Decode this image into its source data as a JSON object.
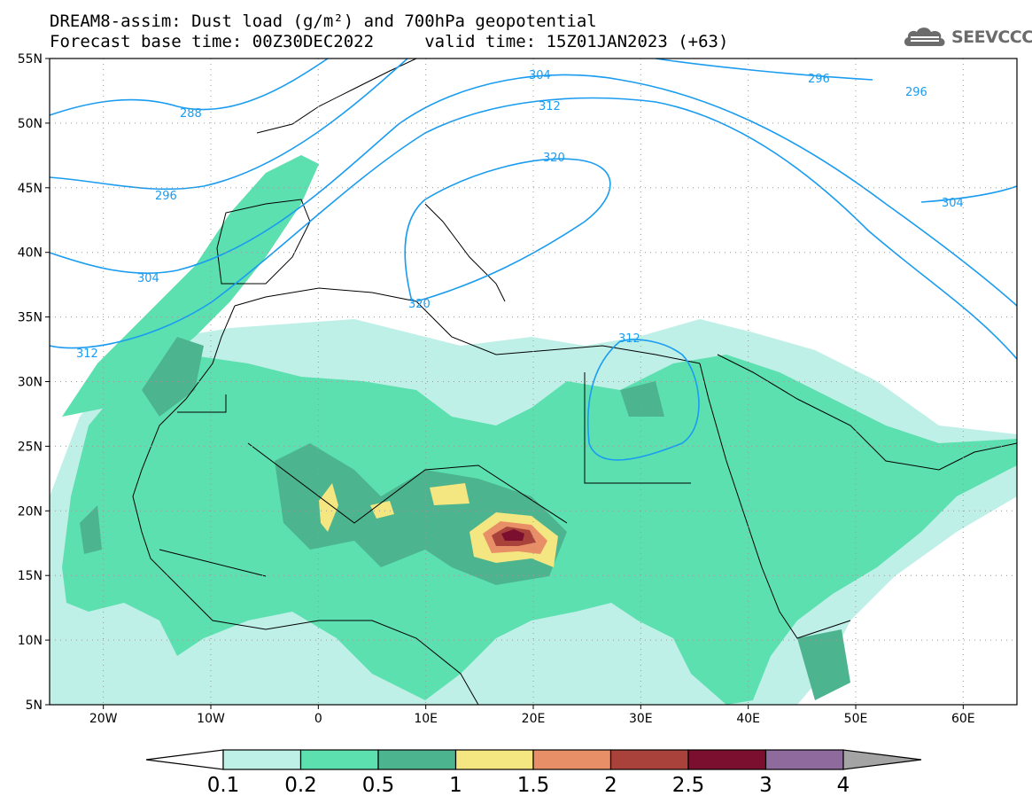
{
  "header": {
    "title_line1": "DREAM8-assim: Dust load (g/m²) and 700hPa geopotential",
    "title_line2": "Forecast base time: 00Z30DEC2022     valid time: 15Z01JAN2023 (+63)"
  },
  "logo": {
    "text": "SEEVCCC",
    "icon": "cloud-icon"
  },
  "map": {
    "lat_labels": [
      "55N",
      "50N",
      "45N",
      "40N",
      "35N",
      "30N",
      "25N",
      "20N",
      "15N",
      "10N",
      "5N"
    ],
    "lon_labels": [
      "20W",
      "10W",
      "0",
      "10E",
      "20E",
      "30E",
      "40E",
      "50E",
      "60E"
    ],
    "lat_values": [
      55,
      50,
      45,
      40,
      35,
      30,
      25,
      20,
      15,
      10,
      5
    ],
    "lon_values": [
      -20,
      -10,
      0,
      10,
      20,
      30,
      40,
      50,
      60
    ],
    "extent": {
      "lon_min": -25,
      "lon_max": 65,
      "lat_min": 5,
      "lat_max": 55
    },
    "geopotential_contour_labels": [
      "288",
      "296",
      "304",
      "312",
      "320",
      "304",
      "312",
      "320",
      "312",
      "296",
      "296",
      "304"
    ],
    "contour_color": "#1a9cf0"
  },
  "colorbar": {
    "labels": [
      "0.1",
      "0.2",
      "0.5",
      "1",
      "1.5",
      "2",
      "2.5",
      "3",
      "4"
    ],
    "colors": [
      "#bff0e8",
      "#5de0b0",
      "#4cb58f",
      "#f4e680",
      "#e98f68",
      "#a8423a",
      "#7a0f2f",
      "#8e6a9d",
      "#a4a4a4"
    ]
  }
}
